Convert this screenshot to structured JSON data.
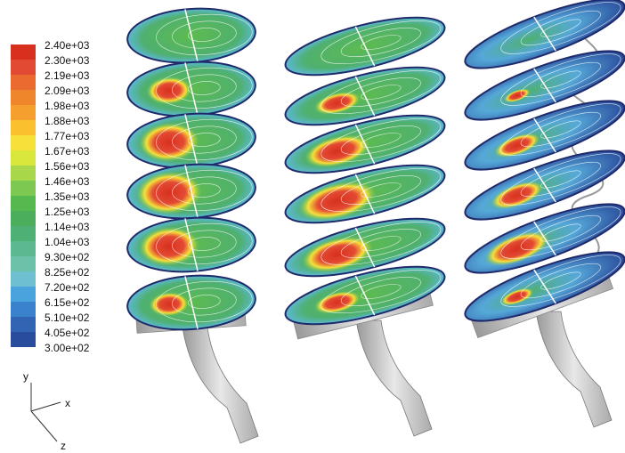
{
  "colorbar": {
    "entries": [
      {
        "label": "2.40e+03",
        "color": "#d7301f"
      },
      {
        "label": "2.30e+03",
        "color": "#e34a33"
      },
      {
        "label": "2.19e+03",
        "color": "#ea6a2f"
      },
      {
        "label": "2.09e+03",
        "color": "#f0862c"
      },
      {
        "label": "1.98e+03",
        "color": "#f5a02e"
      },
      {
        "label": "1.88e+03",
        "color": "#fbc02d"
      },
      {
        "label": "1.77e+03",
        "color": "#f7e03a"
      },
      {
        "label": "1.67e+03",
        "color": "#d9e63b"
      },
      {
        "label": "1.56e+03",
        "color": "#a8d84a"
      },
      {
        "label": "1.46e+03",
        "color": "#7cc850"
      },
      {
        "label": "1.35e+03",
        "color": "#55b94f"
      },
      {
        "label": "1.25e+03",
        "color": "#4aae5c"
      },
      {
        "label": "1.14e+03",
        "color": "#4fb076"
      },
      {
        "label": "1.04e+03",
        "color": "#5cb88f"
      },
      {
        "label": "9.30e+02",
        "color": "#6cc2a8"
      },
      {
        "label": "8.25e+02",
        "color": "#6ebfd0"
      },
      {
        "label": "7.20e+02",
        "color": "#4aa3dc"
      },
      {
        "label": "6.15e+02",
        "color": "#3a82cc"
      },
      {
        "label": "5.10e+02",
        "color": "#3264b4"
      },
      {
        "label": "4.05e+02",
        "color": "#2a4c9c"
      }
    ],
    "last_label": "3.00e+02"
  },
  "axes": {
    "y": "y",
    "x": "x",
    "z": "z"
  }
}
